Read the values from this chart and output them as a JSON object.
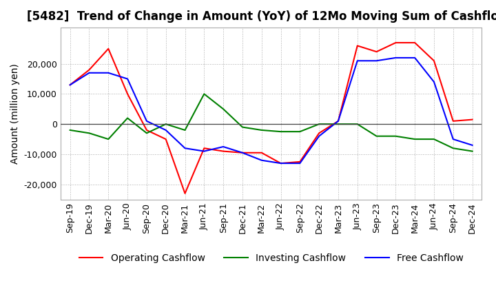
{
  "title": "[5482]  Trend of Change in Amount (YoY) of 12Mo Moving Sum of Cashflows",
  "ylabel": "Amount (million yen)",
  "ylim": [
    -25000,
    32000
  ],
  "yticks": [
    -20000,
    -10000,
    0,
    10000,
    20000
  ],
  "x_labels": [
    "Sep-19",
    "Dec-19",
    "Mar-20",
    "Jun-20",
    "Sep-20",
    "Dec-20",
    "Mar-21",
    "Jun-21",
    "Sep-21",
    "Dec-21",
    "Mar-22",
    "Jun-22",
    "Sep-22",
    "Dec-22",
    "Mar-23",
    "Jun-23",
    "Sep-23",
    "Dec-23",
    "Mar-24",
    "Jun-24",
    "Sep-24",
    "Dec-24"
  ],
  "operating": [
    13000,
    18000,
    25000,
    10000,
    -2000,
    -5000,
    -23000,
    -8000,
    -9000,
    -9500,
    -9500,
    -13000,
    -12500,
    -3000,
    1000,
    26000,
    24000,
    27000,
    27000,
    21000,
    1000,
    1500
  ],
  "investing": [
    -2000,
    -3000,
    -5000,
    2000,
    -3000,
    0,
    -2000,
    10000,
    5000,
    -1000,
    -2000,
    -2500,
    -2500,
    0,
    0,
    0,
    -4000,
    -4000,
    -5000,
    -5000,
    -8000,
    -9000
  ],
  "free": [
    13000,
    17000,
    17000,
    15000,
    1000,
    -2000,
    -8000,
    -9000,
    -7500,
    -9500,
    -12000,
    -13000,
    -13000,
    -4000,
    1000,
    21000,
    21000,
    22000,
    22000,
    14000,
    -5000,
    -7000
  ],
  "operating_color": "#ff0000",
  "investing_color": "#008000",
  "free_color": "#0000ff",
  "background_color": "#ffffff",
  "grid_color": "#aaaaaa",
  "title_fontsize": 12,
  "axis_fontsize": 9,
  "legend_fontsize": 10
}
